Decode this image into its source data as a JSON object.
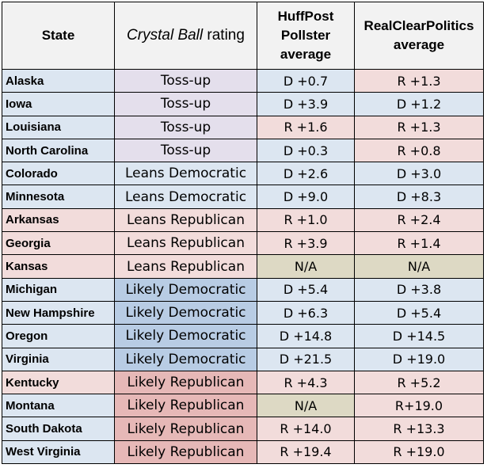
{
  "headers": {
    "state": "State",
    "rating_italic": "Crystal Ball",
    "rating_rest": " rating",
    "huffpost": [
      "HuffPost",
      "Pollster",
      "average"
    ],
    "rcp": [
      "RealClearPolitics",
      "average"
    ]
  },
  "colors": {
    "header": "#f2f2f2",
    "dem_light": "#dce6f1",
    "rep_light": "#f2dcdb",
    "tossup": "#e4dfec",
    "likely_dem": "#b8cce4",
    "likely_rep": "#e6b8b7",
    "na": "#ddd9c4"
  },
  "rows": [
    {
      "state": "Alaska",
      "rating": "Toss-up",
      "huffpost": "D +0.7",
      "rcp": "R +1.3"
    },
    {
      "state": "Iowa",
      "rating": "Toss-up",
      "huffpost": "D +3.9",
      "rcp": "D +1.2"
    },
    {
      "state": "Louisiana",
      "rating": "Toss-up",
      "huffpost": "R +1.6",
      "rcp": "R +1.3"
    },
    {
      "state": "North Carolina",
      "rating": "Toss-up",
      "huffpost": "D +0.3",
      "rcp": "R +0.8"
    },
    {
      "state": "Colorado",
      "rating": "Leans Democratic",
      "huffpost": "D +2.6",
      "rcp": "D +3.0"
    },
    {
      "state": "Minnesota",
      "rating": "Leans Democratic",
      "huffpost": "D +9.0",
      "rcp": "D +8.3"
    },
    {
      "state": "Arkansas",
      "rating": "Leans Republican",
      "huffpost": "R +1.0",
      "rcp": "R +2.4"
    },
    {
      "state": "Georgia",
      "rating": "Leans Republican",
      "huffpost": "R +3.9",
      "rcp": "R +1.4"
    },
    {
      "state": "Kansas",
      "rating": "Leans Republican",
      "huffpost": "N/A",
      "rcp": "N/A"
    },
    {
      "state": "Michigan",
      "rating": "Likely Democratic",
      "huffpost": "D +5.4",
      "rcp": "D +3.8"
    },
    {
      "state": "New Hampshire",
      "rating": "Likely Democratic",
      "huffpost": "D +6.3",
      "rcp": "D +5.4"
    },
    {
      "state": "Oregon",
      "rating": "Likely Democratic",
      "huffpost": "D +14.8",
      "rcp": "D +14.5"
    },
    {
      "state": "Virginia",
      "rating": "Likely Democratic",
      "huffpost": "D +21.5",
      "rcp": "D +19.0"
    },
    {
      "state": "Kentucky",
      "rating": "Likely Republican",
      "huffpost": "R +4.3",
      "rcp": "R +5.2"
    },
    {
      "state": "Montana",
      "rating": "Likely Republican",
      "huffpost": "N/A",
      "rcp": "R+19.0"
    },
    {
      "state": "South Dakota",
      "rating": "Likely Republican",
      "huffpost": "R +14.0",
      "rcp": "R +13.3"
    },
    {
      "state": "West Virginia",
      "rating": "Likely Republican",
      "huffpost": "R +19.4",
      "rcp": "R +19.0"
    }
  ]
}
